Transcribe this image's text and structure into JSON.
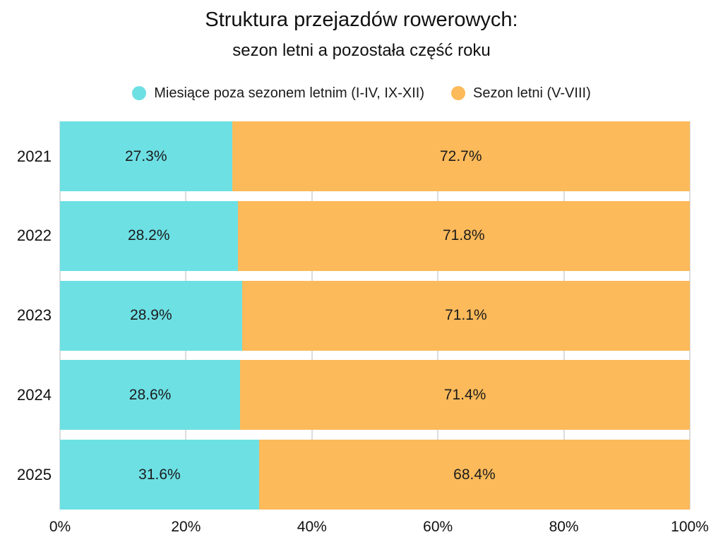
{
  "title": "Struktura przejazdów rowerowych:",
  "subtitle": "sezon letni a pozostała część roku",
  "legend": [
    {
      "id": "poza-sezonem",
      "label": "Miesiące poza sezonem letnim (I-IV, IX-XII)",
      "color": "#6de0e4"
    },
    {
      "id": "sezon-letni",
      "label": "Sezon letni (V-VIII)",
      "color": "#fcba5a"
    }
  ],
  "colors": {
    "offseason": "#6de0e4",
    "summer": "#fcba5a",
    "gridline": "#dcdcdc",
    "text": "#1a1a1a",
    "background": "#ffffff"
  },
  "chart_data": {
    "type": "bar",
    "orientation": "horizontal",
    "stacked": true,
    "title": "Struktura przejazdów rowerowych:",
    "subtitle": "sezon letni a pozostała część roku",
    "categories": [
      "2021",
      "2022",
      "2023",
      "2024",
      "2025"
    ],
    "series": [
      {
        "id": "poza-sezonem",
        "name": "Miesiące poza sezonem letnim (I-IV, IX-XII)",
        "color": "#6de0e4",
        "values": [
          27.3,
          28.2,
          28.9,
          28.6,
          31.6
        ]
      },
      {
        "id": "sezon-letni",
        "name": "Sezon letni (V-VIII)",
        "color": "#fcba5a",
        "values": [
          72.7,
          71.8,
          71.1,
          71.4,
          68.4
        ]
      }
    ],
    "value_suffix": "%",
    "x_ticks": [
      "0%",
      "20%",
      "40%",
      "60%",
      "80%",
      "100%"
    ],
    "xlim": [
      0,
      100
    ],
    "grid": true,
    "legend_position": "top",
    "bar_labels": "inside-center"
  }
}
